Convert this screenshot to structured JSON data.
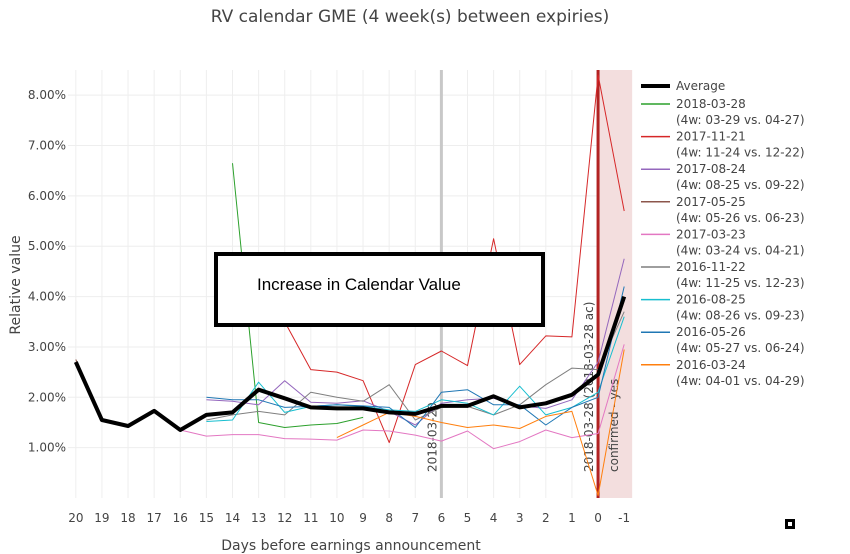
{
  "chart_data": {
    "type": "line",
    "title": "RV calendar GME (4 week(s) between expiries)",
    "xlabel": "Days before earnings announcement",
    "ylabel": "Relative value",
    "x_ticks": [
      20,
      19,
      18,
      17,
      16,
      15,
      14,
      13,
      12,
      11,
      10,
      9,
      8,
      7,
      6,
      5,
      4,
      3,
      2,
      1,
      0,
      -1
    ],
    "x_range": [
      20.3,
      -1.3
    ],
    "y_range": [
      0,
      8.5
    ],
    "y_ticks": [
      1,
      2,
      3,
      4,
      5,
      6,
      7,
      8
    ],
    "y_tick_labels": [
      "1.00%",
      "2.00%",
      "3.00%",
      "4.00%",
      "5.00%",
      "6.00%",
      "7.00%",
      "8.00%"
    ],
    "grid": true,
    "legend_position": "right",
    "series": [
      {
        "name": "Average",
        "label": "Average",
        "color": "#000000",
        "width": 4,
        "x": [
          20,
          19,
          18,
          17,
          16,
          15,
          14,
          13,
          12,
          11,
          10,
          9,
          8,
          7,
          6,
          5,
          4,
          3,
          2,
          1,
          0,
          -1
        ],
        "y": [
          2.7,
          1.55,
          1.43,
          1.73,
          1.35,
          1.65,
          1.7,
          2.15,
          1.98,
          1.8,
          1.78,
          1.78,
          1.7,
          1.67,
          1.83,
          1.83,
          2.02,
          1.8,
          1.88,
          2.05,
          2.45,
          4.0
        ]
      },
      {
        "name": "2018-03-28",
        "label": "(4w: 03-29 vs. 04-27)",
        "color": "#2ca02c",
        "width": 1,
        "x": [
          14,
          13,
          12,
          11,
          10,
          9
        ],
        "y": [
          6.65,
          1.5,
          1.4,
          1.45,
          1.48,
          1.6
        ]
      },
      {
        "name": "2017-11-21",
        "label": "(4w: 11-24 vs. 12-22)",
        "color": "#d62728",
        "width": 1,
        "x": [
          12,
          11,
          10,
          9,
          8,
          7,
          6,
          5,
          4,
          3,
          2,
          1,
          0,
          -1
        ],
        "y": [
          3.5,
          2.55,
          2.5,
          2.33,
          1.1,
          2.65,
          2.92,
          2.63,
          5.15,
          2.65,
          3.22,
          3.2,
          8.4,
          5.7
        ]
      },
      {
        "name": "2017-08-24",
        "label": "(4w: 08-25 vs. 09-22)",
        "color": "#9467bd",
        "width": 1,
        "x": [
          15,
          14,
          13,
          12,
          11,
          10,
          9,
          8,
          7,
          6,
          5,
          4,
          3,
          2,
          1,
          0,
          -1
        ],
        "y": [
          1.95,
          1.92,
          1.85,
          2.33,
          1.9,
          1.88,
          1.93,
          1.72,
          1.45,
          1.88,
          1.95,
          1.98,
          1.83,
          1.78,
          1.95,
          2.7,
          4.75
        ]
      },
      {
        "name": "2017-05-25",
        "label": "(4w: 05-26 vs. 06-23)",
        "color": "#8c564b",
        "width": 1,
        "x": [
          20,
          19,
          18,
          17,
          16
        ],
        "y": [
          2.75,
          1.55,
          1.43,
          1.75,
          1.35
        ]
      },
      {
        "name": "2017-03-23",
        "label": "(4w: 03-24 vs. 04-21)",
        "color": "#e377c2",
        "width": 1,
        "x": [
          20,
          19,
          18,
          17,
          16,
          15,
          14,
          13,
          12,
          11,
          10,
          9,
          8,
          7,
          6,
          5,
          4,
          3,
          2,
          1,
          0,
          -1
        ],
        "y": [
          2.7,
          1.55,
          1.42,
          1.73,
          1.35,
          1.23,
          1.26,
          1.26,
          1.18,
          1.17,
          1.15,
          1.35,
          1.33,
          1.25,
          1.13,
          1.33,
          0.98,
          1.12,
          1.35,
          1.2,
          1.28,
          3.05
        ]
      },
      {
        "name": "2016-11-22",
        "label": "(4w: 11-25 vs. 12-23)",
        "color": "#7f7f7f",
        "width": 1,
        "x": [
          15,
          14,
          13,
          12,
          11,
          10,
          9,
          8,
          7,
          6,
          5,
          4,
          3,
          2,
          1,
          0,
          -1
        ],
        "y": [
          1.55,
          1.65,
          1.72,
          1.65,
          2.1,
          2.0,
          1.92,
          2.25,
          1.55,
          1.8,
          1.82,
          1.65,
          1.85,
          2.25,
          2.58,
          2.55,
          3.7
        ]
      },
      {
        "name": "2016-08-25",
        "label": "(4w: 08-26 vs. 09-23)",
        "color": "#17becf",
        "width": 1,
        "x": [
          15,
          14,
          13,
          12,
          11,
          10,
          9,
          8,
          7,
          6,
          5,
          4,
          3,
          2,
          1,
          0,
          -1
        ],
        "y": [
          1.52,
          1.55,
          2.3,
          1.7,
          1.82,
          1.85,
          1.82,
          1.75,
          1.72,
          1.95,
          1.88,
          1.65,
          2.22,
          1.65,
          1.8,
          2.1,
          3.6
        ]
      },
      {
        "name": "2016-05-26",
        "label": "(4w: 05-27 vs. 06-24)",
        "color": "#1f77b4",
        "width": 1,
        "x": [
          15,
          14,
          13,
          12,
          11,
          10,
          9,
          8,
          7,
          6,
          5,
          4,
          3,
          2,
          1,
          0,
          -1
        ],
        "y": [
          2.0,
          1.95,
          1.95,
          1.8,
          1.82,
          1.85,
          1.83,
          1.8,
          1.4,
          2.1,
          2.15,
          1.85,
          1.85,
          1.45,
          1.8,
          2.0,
          4.2
        ]
      },
      {
        "name": "2016-03-24",
        "label": "(4w: 04-01 vs. 04-29)",
        "color": "#ff7f0e",
        "width": 1,
        "x": [
          10,
          9,
          8,
          7,
          6,
          5,
          4,
          3,
          2,
          1,
          0,
          -1
        ],
        "y": [
          1.2,
          1.45,
          1.7,
          1.62,
          1.5,
          1.4,
          1.45,
          1.38,
          1.62,
          1.72,
          0.05,
          2.95
        ]
      }
    ],
    "vertical_markers": [
      {
        "x": 6,
        "label": "2018-03-20",
        "color": "#c8c8c8"
      },
      {
        "x": 0,
        "label": "2018-03-28 (2018-03-28 ac)",
        "color": "#b22222"
      }
    ],
    "shaded_region": {
      "x_from": 0,
      "x_to": -1,
      "label": "confirmed - yes",
      "color": "#f3dede"
    },
    "annotation": "Increase in Calendar Value"
  }
}
